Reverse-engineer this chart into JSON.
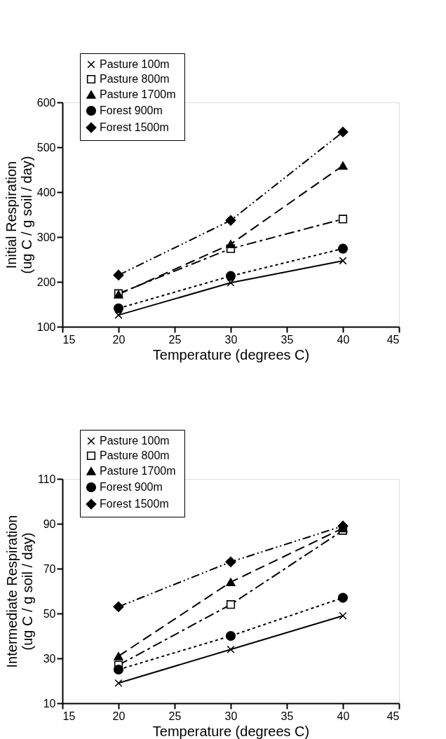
{
  "chart_data": [
    {
      "type": "line",
      "xlabel": "Temperature  (degrees C)",
      "ylabel": "Initial  Respiration\n(ug C / g soil / day)",
      "x": [
        20,
        30,
        40
      ],
      "xlim": [
        15,
        45
      ],
      "xticks": [
        15,
        20,
        25,
        30,
        35,
        40,
        45
      ],
      "ylim": [
        100,
        600
      ],
      "yticks": [
        100,
        200,
        300,
        400,
        500,
        600
      ],
      "grid": false,
      "legend": "top left",
      "series": [
        {
          "name": "Pasture  100m",
          "color": "#000000",
          "marker": "cross",
          "line_style": "solid",
          "values": [
            126,
            198,
            247
          ]
        },
        {
          "name": "Pasture  800m",
          "color": "#000000",
          "marker": "square",
          "line_style": "dashdot",
          "values": [
            174,
            274,
            340
          ]
        },
        {
          "name": "Pasture  1700m",
          "color": "#000000",
          "marker": "triangle",
          "line_style": "dashed",
          "values": [
            172,
            284,
            459
          ]
        },
        {
          "name": "Forest  900m",
          "color": "#000000",
          "marker": "circle",
          "line_style": "dotted",
          "values": [
            141,
            213,
            274
          ]
        },
        {
          "name": "Forest  1500m",
          "color": "#000000",
          "marker": "diamond",
          "line_style": "dashdotdot",
          "values": [
            215,
            337,
            534
          ]
        }
      ]
    },
    {
      "type": "line",
      "xlabel": "Temperature  (degrees C)",
      "ylabel": "Intermediate  Respiration\n(ug C / g soil / day)",
      "x": [
        20,
        30,
        40
      ],
      "xlim": [
        15,
        45
      ],
      "xticks": [
        15,
        20,
        25,
        30,
        35,
        40,
        45
      ],
      "ylim": [
        10,
        110
      ],
      "yticks": [
        10,
        30,
        50,
        70,
        90,
        110
      ],
      "grid": false,
      "legend": "top left",
      "series": [
        {
          "name": "Pasture  100m",
          "color": "#000000",
          "marker": "cross",
          "line_style": "solid",
          "values": [
            19,
            34,
            49
          ]
        },
        {
          "name": "Pasture  800m",
          "color": "#000000",
          "marker": "square",
          "line_style": "dashdot",
          "values": [
            27,
            54,
            87
          ]
        },
        {
          "name": "Pasture  1700m",
          "color": "#000000",
          "marker": "triangle",
          "line_style": "dashed",
          "values": [
            31,
            64,
            88
          ]
        },
        {
          "name": "Forest  900m",
          "color": "#000000",
          "marker": "circle",
          "line_style": "dotted",
          "values": [
            25,
            40,
            57
          ]
        },
        {
          "name": "Forest  1500m",
          "color": "#000000",
          "marker": "diamond",
          "line_style": "dashdotdot",
          "values": [
            53,
            73,
            89
          ]
        }
      ]
    }
  ]
}
